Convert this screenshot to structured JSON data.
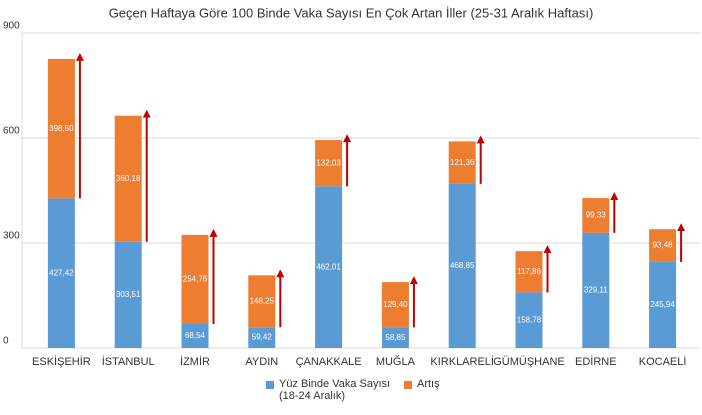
{
  "chart_data": {
    "type": "stacked-bar",
    "title": "Geçen Haftaya Göre 100 Binde Vaka Sayısı En Çok Artan İller (25-31 Aralık Haftası)",
    "categories": [
      "ESKİŞEHİR",
      "İSTANBUL",
      "İZMİR",
      "AYDIN",
      "ÇANAKKALE",
      "MUĞLA",
      "KIRKLARELİ",
      "GÜMÜŞHANE",
      "EDİRNE",
      "KOCAELİ"
    ],
    "series": [
      {
        "name": "Yüz Binde Vaka Sayısı (18-24 Aralık)",
        "color": "#5b9bd5",
        "values": [
          427.42,
          303.51,
          68.54,
          59.42,
          462.01,
          58.85,
          468.85,
          158.78,
          329.11,
          245.94
        ],
        "value_labels": [
          "427,42",
          "303,51",
          "68,54",
          "59,42",
          "462,01",
          "58,85",
          "468,85",
          "158,78",
          "329,11",
          "245,94"
        ]
      },
      {
        "name": "Artış",
        "color": "#ed7d31",
        "values": [
          398.5,
          360.18,
          254.76,
          148.25,
          132.03,
          129.4,
          121.36,
          117.86,
          99.33,
          93.48
        ],
        "value_labels": [
          "398,50",
          "360,18",
          "254,76",
          "148,25",
          "132,03",
          "129,40",
          "121,36",
          "117,86",
          "99,33",
          "93,48"
        ]
      }
    ],
    "arrow_color": "#c00000",
    "ylim": [
      0,
      900
    ],
    "yticks": [
      0,
      300,
      600,
      900
    ],
    "grid": true
  }
}
